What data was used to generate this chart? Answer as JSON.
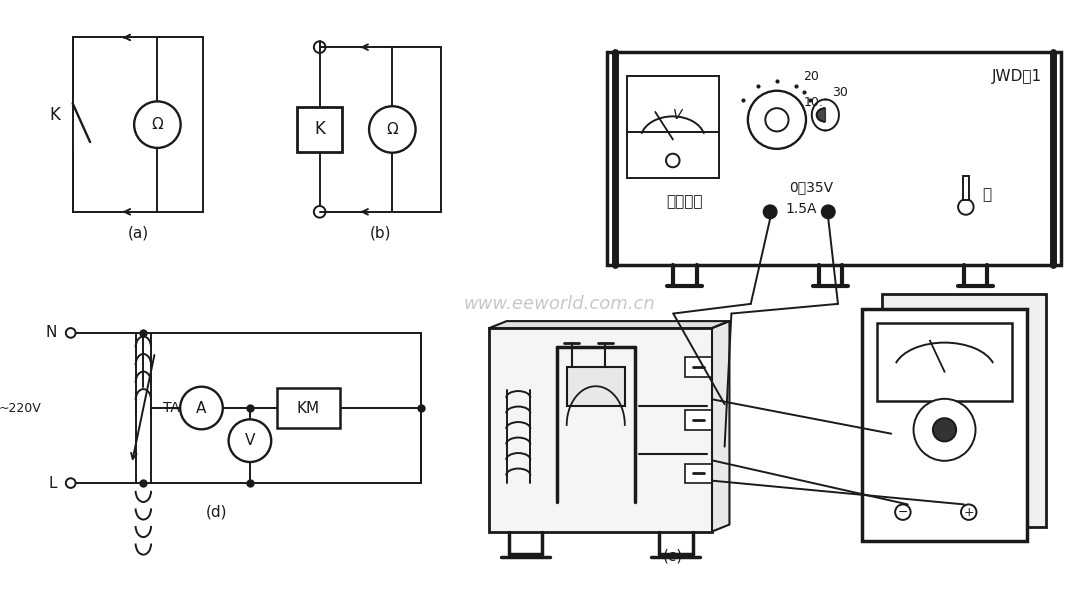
{
  "background_color": "#ffffff",
  "line_color": "#1a1a1a",
  "watermark": "www.eeworld.com.cn",
  "label_a": "(a)",
  "label_b": "(b)",
  "label_c": "(c)",
  "label_d": "(d)",
  "device_label_jwd": "JWD－1",
  "device_label_wyyuan": "稳压电源",
  "device_label_voltage": "0～35V",
  "device_label_current": "1.5A",
  "device_label_kai": "开",
  "device_label_ta": "TA",
  "device_label_n": "N",
  "device_label_l": "L",
  "device_label_220v": "~220V",
  "device_label_km": "KM",
  "device_label_k": "K",
  "omega": "Ω"
}
